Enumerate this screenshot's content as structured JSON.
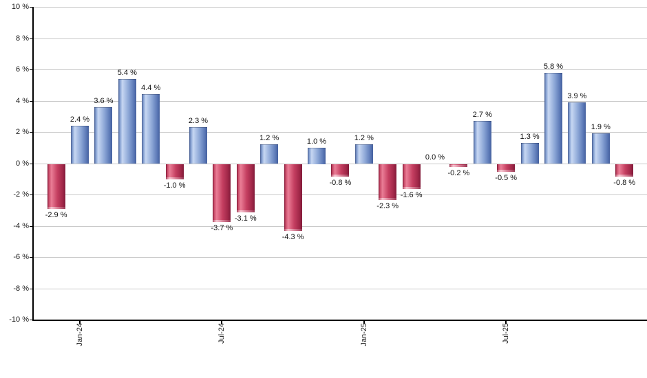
{
  "chart_data": {
    "type": "bar",
    "title": "",
    "xlabel": "",
    "ylabel": "",
    "ylim": [
      -10,
      10
    ],
    "grid": true,
    "legend": "none",
    "values": [
      -2.9,
      2.4,
      3.6,
      5.4,
      4.4,
      -1.0,
      2.3,
      -3.7,
      -3.1,
      1.2,
      -4.3,
      1.0,
      -0.8,
      1.2,
      -2.3,
      -1.6,
      0.0,
      -0.2,
      2.7,
      -0.5,
      1.3,
      5.8,
      3.9,
      1.9,
      -0.8
    ],
    "value_labels": [
      "-2.9 %",
      "2.4 %",
      "3.6 %",
      "5.4 %",
      "4.4 %",
      "-1.0 %",
      "2.3 %",
      "-3.7 %",
      "-3.1 %",
      "1.2 %",
      "-4.3 %",
      "1.0 %",
      "-0.8 %",
      "1.2 %",
      "-2.3 %",
      "-1.6 %",
      "0.0 %",
      "-0.2 %",
      "2.7 %",
      "-0.5 %",
      "1.3 %",
      "5.8 %",
      "3.9 %",
      "1.9 %",
      "-0.8 %"
    ],
    "x_ticks": [
      {
        "bar_index": 1,
        "label": "Jan-24"
      },
      {
        "bar_index": 7,
        "label": "Jul-24"
      },
      {
        "bar_index": 13,
        "label": "Jan-25"
      },
      {
        "bar_index": 19,
        "label": "Jul-25"
      }
    ],
    "y_ticks": [
      {
        "value": 10,
        "label": "10 %"
      },
      {
        "value": 8,
        "label": "8 %"
      },
      {
        "value": 6,
        "label": "6 %"
      },
      {
        "value": 4,
        "label": "4 %"
      },
      {
        "value": 2,
        "label": "2 %"
      },
      {
        "value": 0,
        "label": "0 %"
      },
      {
        "value": -2,
        "label": "-2 %"
      },
      {
        "value": -4,
        "label": "-4 %"
      },
      {
        "value": -6,
        "label": "-6 %"
      },
      {
        "value": -8,
        "label": "-8 %"
      },
      {
        "value": -10,
        "label": "-10 %"
      }
    ],
    "colors": {
      "positive_light": "#c7d7f2",
      "positive_mid": "#8fa9d8",
      "positive_dark": "#44609e",
      "negative_light": "#ea7d96",
      "negative_mid": "#c53f61",
      "negative_dark": "#7c1432",
      "gridline": "#c9c9c9",
      "axis": "#000000",
      "text": "#1a1a1a"
    }
  }
}
